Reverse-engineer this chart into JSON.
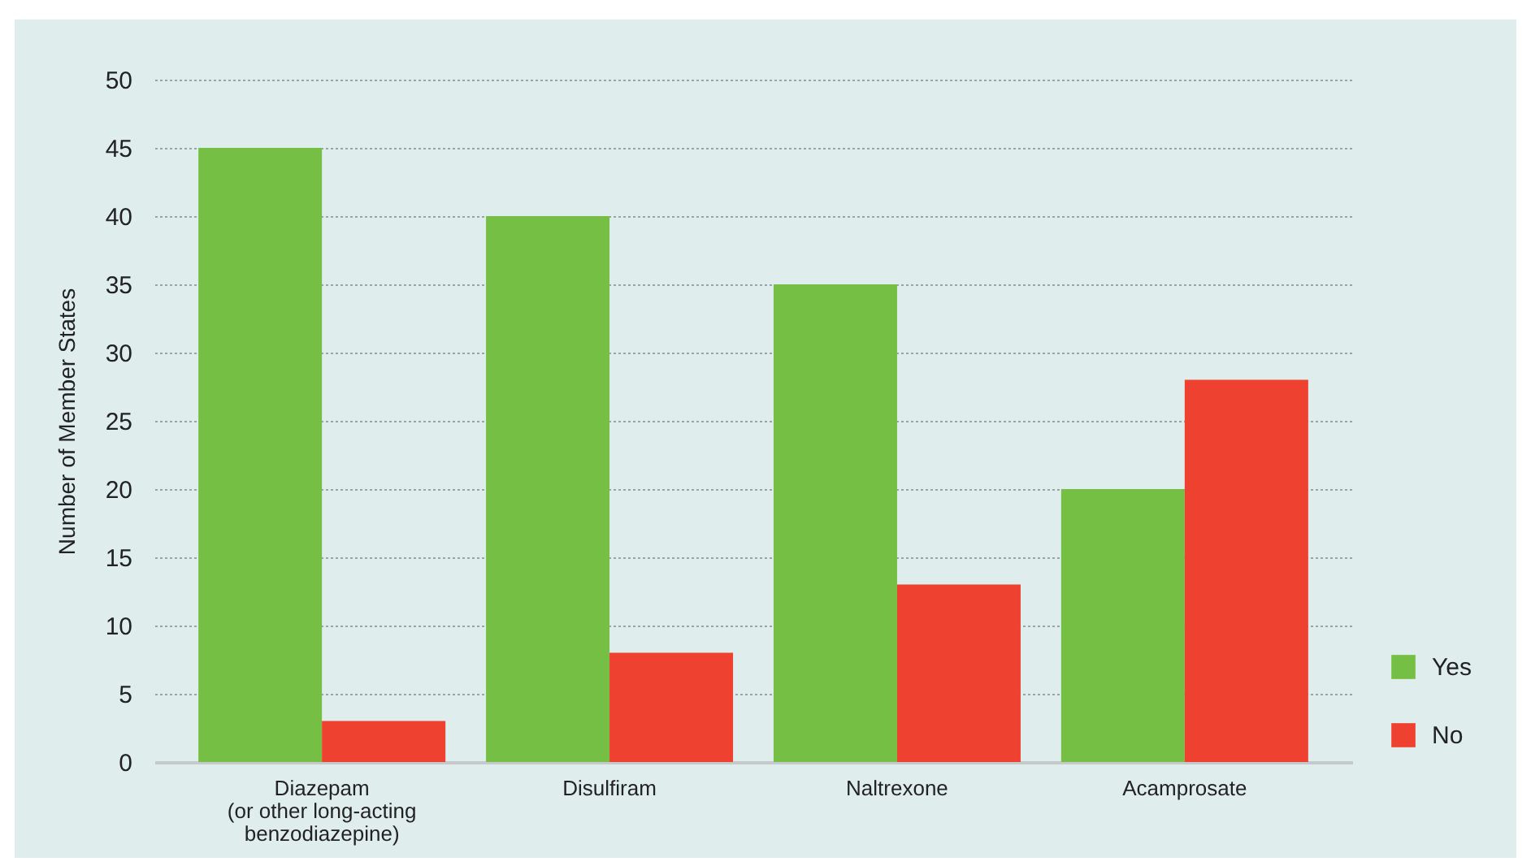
{
  "chart_data": {
    "type": "bar",
    "ylabel": "Number of Member States",
    "categories": [
      "Diazepam\n(or other long-acting\nbenzodiazepine)",
      "Disulfiram",
      "Naltrexone",
      "Acamprosate"
    ],
    "series": [
      {
        "name": "Yes",
        "color": "#75bf44",
        "values": [
          45,
          40,
          35,
          20
        ]
      },
      {
        "name": "No",
        "color": "#ee4130",
        "values": [
          3,
          8,
          13,
          28
        ]
      }
    ],
    "ylim": [
      0,
      50
    ],
    "yticks": [
      0,
      5,
      10,
      15,
      20,
      25,
      30,
      35,
      40,
      45,
      50
    ],
    "grid": "y",
    "legend": "bottom right"
  }
}
